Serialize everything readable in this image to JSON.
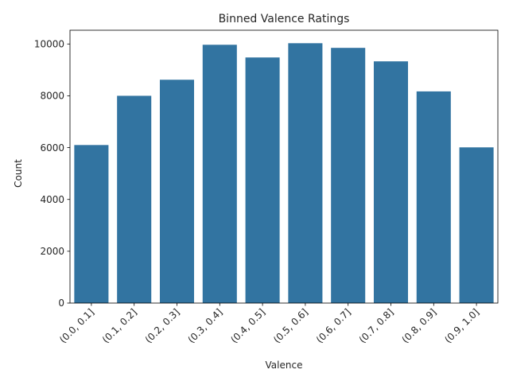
{
  "chart_data": {
    "type": "bar",
    "title": "Binned Valence Ratings",
    "xlabel": "Valence",
    "ylabel": "Count",
    "categories": [
      "(0.0, 0.1]",
      "(0.1, 0.2]",
      "(0.2, 0.3]",
      "(0.3, 0.4]",
      "(0.4, 0.5]",
      "(0.5, 0.6]",
      "(0.6, 0.7]",
      "(0.7, 0.8]",
      "(0.8, 0.9]",
      "(0.9, 1.0]"
    ],
    "values": [
      6100,
      8000,
      8620,
      9970,
      9480,
      10030,
      9850,
      9330,
      8170,
      6010
    ],
    "ylim": [
      0,
      10531
    ],
    "yticks": [
      0,
      2000,
      4000,
      6000,
      8000,
      10000
    ],
    "grid": false,
    "bar_color": "#3274a1",
    "text_color": "#262626"
  }
}
